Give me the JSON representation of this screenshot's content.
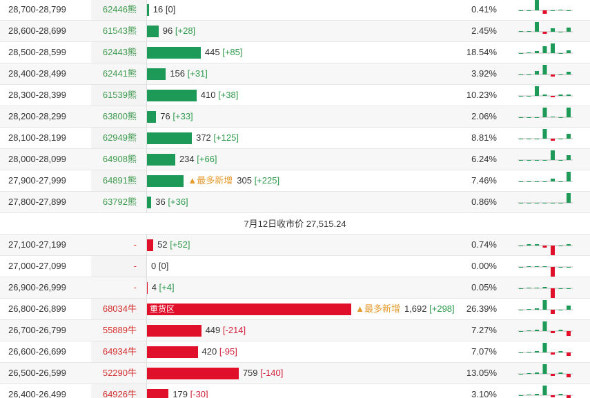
{
  "table": {
    "bear": {
      "color": "#1e9a58",
      "code_color": "#3f9b4f",
      "rows": [
        {
          "range": "28,700-28,799",
          "code": "62446熊",
          "count": 16,
          "change": "[0]",
          "pct": "0.41%",
          "spark": [
            0,
            0,
            16,
            -5,
            0,
            1,
            0
          ]
        },
        {
          "range": "28,600-28,699",
          "code": "61543熊",
          "count": 96,
          "change": "[+28]",
          "pct": "2.45%",
          "spark": [
            1,
            1,
            14,
            -3,
            5,
            0,
            6
          ]
        },
        {
          "range": "28,500-28,599",
          "code": "62443熊",
          "count": 445,
          "change": "[+85]",
          "pct": "18.54%",
          "spark": [
            0,
            1,
            3,
            10,
            14,
            0,
            4
          ]
        },
        {
          "range": "28,400-28,499",
          "code": "62441熊",
          "count": 156,
          "change": "[+31]",
          "pct": "3.92%",
          "spark": [
            0,
            0,
            5,
            14,
            -3,
            0,
            4
          ]
        },
        {
          "range": "28,300-28,399",
          "code": "61539熊",
          "count": 410,
          "change": "[+38]",
          "pct": "10.23%",
          "spark": [
            0,
            0,
            14,
            2,
            -2,
            2,
            2
          ]
        },
        {
          "range": "28,200-28,299",
          "code": "63800熊",
          "count": 76,
          "change": "[+33]",
          "pct": "2.06%",
          "spark": [
            0,
            0,
            0,
            14,
            1,
            0,
            14
          ]
        },
        {
          "range": "28,100-28,199",
          "code": "62949熊",
          "count": 372,
          "change": "[+125]",
          "pct": "8.81%",
          "spark": [
            0,
            0,
            0,
            14,
            -3,
            0,
            7
          ]
        },
        {
          "range": "28,000-28,099",
          "code": "64908熊",
          "count": 234,
          "change": "[+66]",
          "pct": "6.24%",
          "spark": [
            0,
            0,
            0,
            0,
            14,
            0,
            7
          ]
        },
        {
          "range": "27,900-27,999",
          "code": "64891熊",
          "count": 305,
          "change": "[+225]",
          "pct": "7.46%",
          "tag": "▲最多新增",
          "spark": [
            0,
            0,
            0,
            0,
            4,
            0,
            14
          ]
        },
        {
          "range": "27,800-27,899",
          "code": "63792熊",
          "count": 36,
          "change": "[+36]",
          "pct": "0.86%",
          "spark": [
            0,
            0,
            0,
            0,
            0,
            0,
            14
          ]
        }
      ]
    },
    "close": "7月12日收市价 27,515.24",
    "bull": {
      "color": "#e0102a",
      "code_color": "#d3302f",
      "rows": [
        {
          "range": "27,100-27,199",
          "code": "-",
          "count": 52,
          "change": "[+52]",
          "pct": "0.74%",
          "spark": [
            0,
            2,
            2,
            -3,
            -14,
            0,
            2
          ]
        },
        {
          "range": "27,000-27,099",
          "code": "-",
          "count": 0,
          "change": "[0]",
          "pct": "0.00%",
          "spark": [
            0,
            1,
            1,
            1,
            -14,
            0,
            0
          ]
        },
        {
          "range": "26,900-26,999",
          "code": "-",
          "count": 4,
          "change": "[+4]",
          "pct": "0.05%",
          "spark": [
            0,
            1,
            1,
            2,
            -14,
            0,
            0
          ]
        },
        {
          "range": "26,800-26,899",
          "code": "68034牛",
          "count": {
            "value": 1692,
            "label": "1,692"
          },
          "change": "[+298]",
          "pct": "26.39%",
          "tag": "▲最多新增",
          "label": "重货区",
          "spark": [
            0,
            1,
            2,
            14,
            -6,
            0,
            6
          ]
        },
        {
          "range": "26,700-26,799",
          "code": "55889牛",
          "count": 449,
          "change": "[-214]",
          "pct": "7.27%",
          "spark": [
            0,
            1,
            2,
            14,
            -3,
            2,
            -7
          ]
        },
        {
          "range": "26,600-26,699",
          "code": "64934牛",
          "count": 420,
          "change": "[-95]",
          "pct": "7.07%",
          "spark": [
            0,
            1,
            2,
            14,
            -3,
            2,
            -5
          ]
        },
        {
          "range": "26,500-26,599",
          "code": "52290牛",
          "count": 759,
          "change": "[-140]",
          "pct": "13.05%",
          "spark": [
            0,
            1,
            2,
            14,
            -3,
            2,
            -5
          ]
        },
        {
          "range": "26,400-26,499",
          "code": "64926牛",
          "count": 179,
          "change": "[-30]",
          "pct": "3.10%",
          "spark": [
            0,
            1,
            2,
            14,
            -3,
            2,
            -5
          ]
        }
      ]
    }
  }
}
